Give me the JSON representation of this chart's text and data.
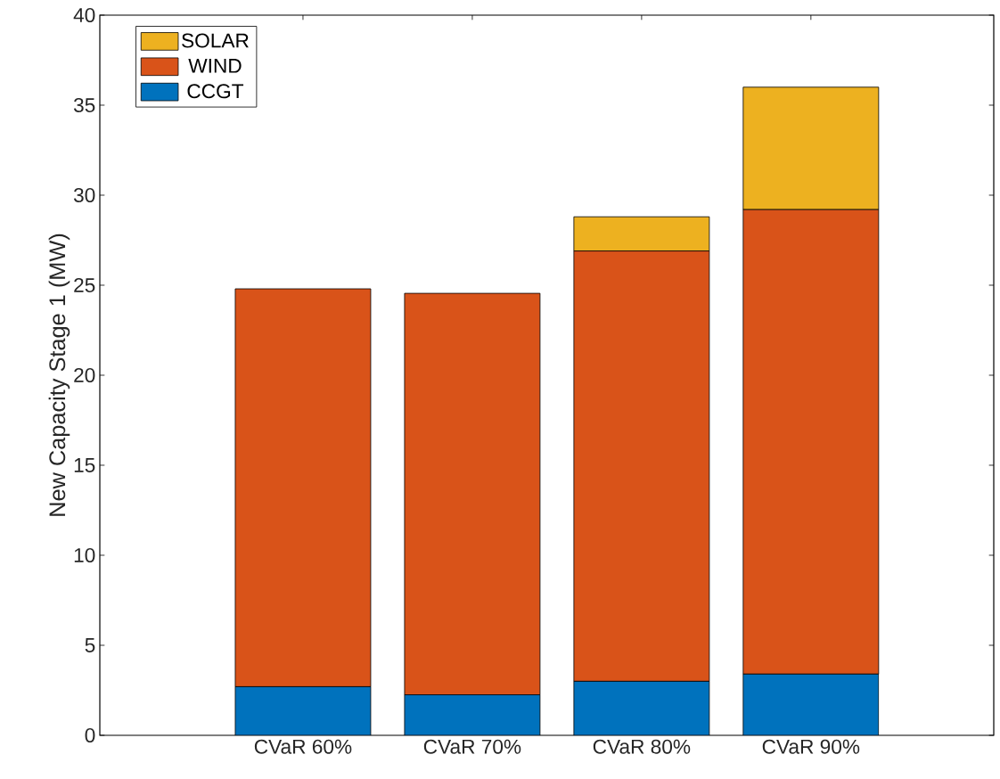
{
  "chart_data": {
    "type": "bar",
    "stacked": true,
    "ylabel": "New Capacity Stage 1 (MW)",
    "categories": [
      "CVaR 60%",
      "CVaR 70%",
      "CVaR 80%",
      "CVaR 90%"
    ],
    "series": [
      {
        "name": "CCGT",
        "color": "#0072bd",
        "values": [
          2.7,
          2.25,
          3.0,
          3.4
        ]
      },
      {
        "name": "WIND",
        "color": "#d95319",
        "values": [
          22.1,
          22.3,
          23.9,
          25.8
        ]
      },
      {
        "name": "SOLAR",
        "color": "#edb120",
        "values": [
          0,
          0,
          1.9,
          6.8
        ]
      }
    ],
    "ylim": [
      0,
      40
    ],
    "yticks": [
      0,
      5,
      10,
      15,
      20,
      25,
      30,
      35,
      40
    ],
    "legend": "top left"
  }
}
